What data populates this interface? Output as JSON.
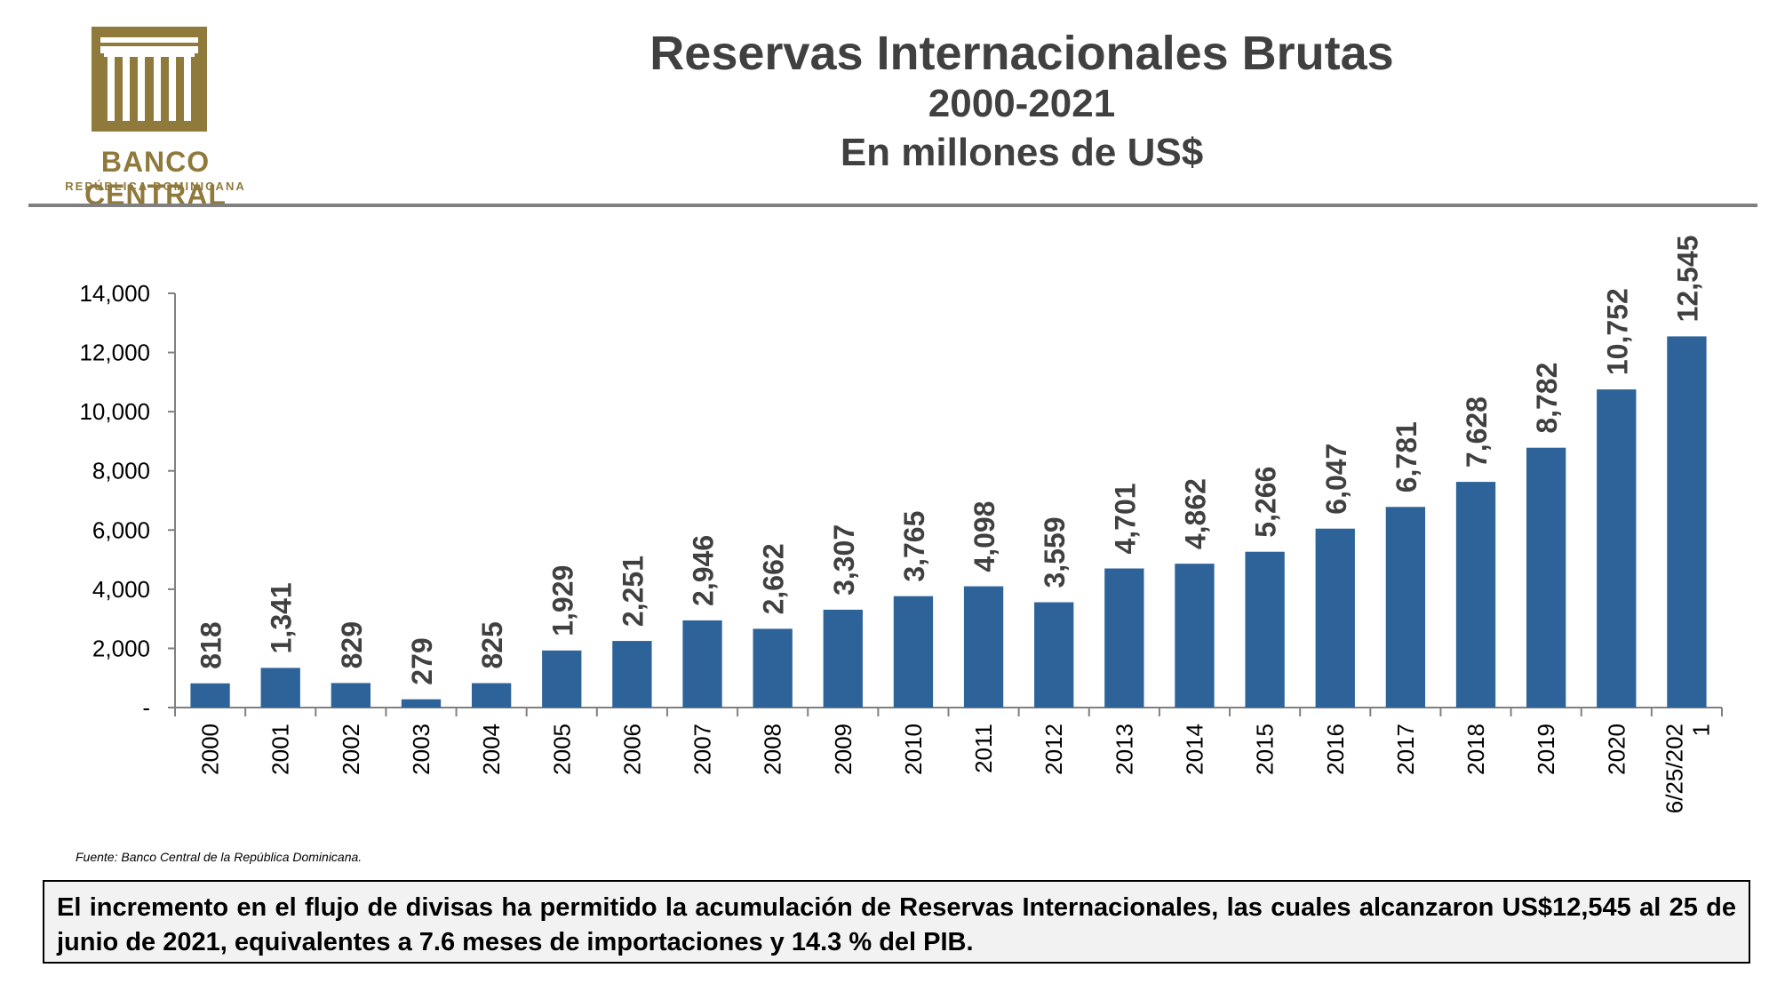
{
  "logo": {
    "name": "BANCO CENTRAL",
    "subtitle": "REPÚBLICA DOMINICANA",
    "color": "#8f7a3c"
  },
  "header": {
    "title": "Reservas Internacionales Brutas",
    "subtitle": "2000-2021",
    "unit": "En millones de US$"
  },
  "chart_data": {
    "type": "bar",
    "categories": [
      "2000",
      "2001",
      "2002",
      "2003",
      "2004",
      "2005",
      "2006",
      "2007",
      "2008",
      "2009",
      "2010",
      "2011",
      "2012",
      "2013",
      "2014",
      "2015",
      "2016",
      "2017",
      "2018",
      "2019",
      "2020",
      "6/25/2021"
    ],
    "values": [
      818,
      1341,
      829,
      279,
      825,
      1929,
      2251,
      2946,
      2662,
      3307,
      3765,
      4098,
      3559,
      4701,
      4862,
      5266,
      6047,
      6781,
      7628,
      8782,
      10752,
      12545
    ],
    "data_labels": [
      "818",
      "1,341",
      "829",
      "279",
      "825",
      "1,929",
      "2,251",
      "2,946",
      "2,662",
      "3,307",
      "3,765",
      "4,098",
      "3,559",
      "4,701",
      "4,862",
      "5,266",
      "6,047",
      "6,781",
      "7,628",
      "8,782",
      "10,752",
      "12,545"
    ],
    "yticks": [
      0,
      2000,
      4000,
      6000,
      8000,
      10000,
      12000,
      14000
    ],
    "ytick_labels": [
      "-",
      "2,000",
      "4,000",
      "6,000",
      "8,000",
      "10,000",
      "12,000",
      "14,000"
    ],
    "ylim": [
      0,
      14000
    ],
    "bar_color": "#2e6399",
    "grid": false,
    "legend": "none"
  },
  "source": "Fuente: Banco Central de la República Dominicana.",
  "note": "El incremento en el flujo de divisas ha permitido la acumulación de Reservas Internacionales, las cuales alcanzaron US$12,545 al 25 de junio de 2021, equivalentes a 7.6 meses de importaciones y 14.3 % del PIB."
}
